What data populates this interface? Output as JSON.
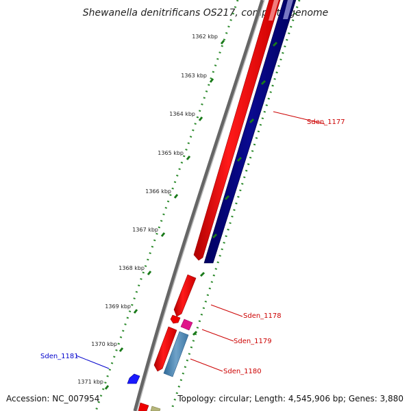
{
  "title": "Shewanella denitrificans OS217, complete genome",
  "footer": {
    "accession": "Accession: NC_007954",
    "topology": "Topology: circular; Length: 4,545,906 bp; Genes: 3,880"
  },
  "ruler": [
    {
      "label": "1362 kbp"
    },
    {
      "label": "1363 kbp"
    },
    {
      "label": "1364 kbp"
    },
    {
      "label": "1365 kbp"
    },
    {
      "label": "1366 kbp"
    },
    {
      "label": "1367 kbp"
    },
    {
      "label": "1368 kbp"
    },
    {
      "label": "1369 kbp"
    },
    {
      "label": "1370 kbp"
    },
    {
      "label": "1371 kbp"
    }
  ],
  "gene_labels": [
    {
      "name": "Sden_1177",
      "color": "#cc0000"
    },
    {
      "name": "Sden_1178",
      "color": "#cc0000"
    },
    {
      "name": "Sden_1179",
      "color": "#cc0000"
    },
    {
      "name": "Sden_1180",
      "color": "#cc0000"
    },
    {
      "name": "Sden_1181",
      "color": "#0000cc"
    }
  ],
  "colors": {
    "backbone": "#888888",
    "ruler_major": "#1a7a1a",
    "ruler_minor": "#2e8b2e",
    "cds_forward": "#ff0000",
    "cds_reverse": "#000080",
    "rna": "#e0158a",
    "other_feature": "#4a7fb0",
    "reverse_small": "#1a1aff",
    "misc": "#b5b57a"
  },
  "icons": [
    "backbone-line",
    "ruler-ticks",
    "gene-arrows"
  ]
}
